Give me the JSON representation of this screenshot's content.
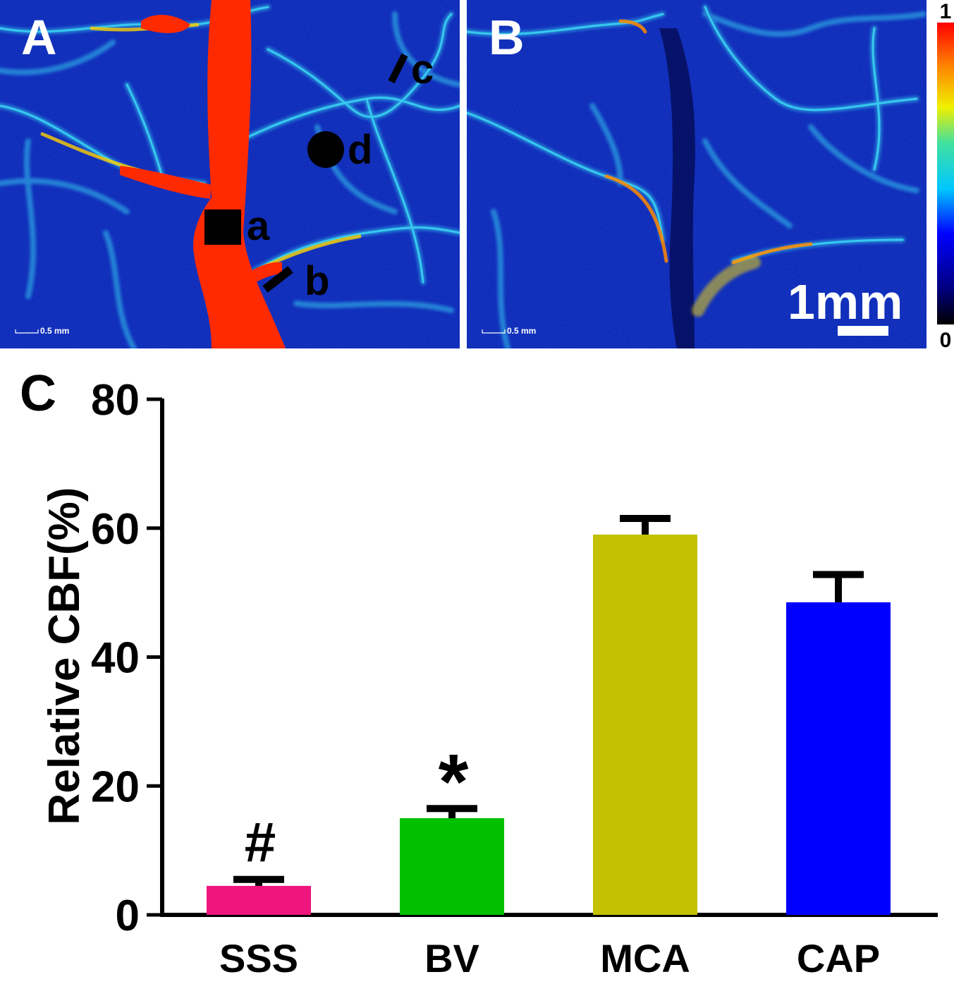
{
  "panels": {
    "a": {
      "label": "A",
      "scale_text": "0.5 mm",
      "markers": [
        {
          "shape": "square",
          "label": "a"
        },
        {
          "shape": "bar",
          "label": "b"
        },
        {
          "shape": "bar",
          "label": "c"
        },
        {
          "shape": "circle",
          "label": "d"
        }
      ]
    },
    "b": {
      "label": "B",
      "scale_text": "0.5 mm",
      "scale_bar_label": "1mm"
    },
    "colorbar": {
      "max_label": "1",
      "min_label": "0"
    }
  },
  "colors": {
    "laser_background": "#0a1fb4",
    "vessel_cyan": "#36c8ee",
    "vessel_red": "#ff2a00",
    "bar_sss": "#f0157d",
    "bar_bv": "#00c000",
    "bar_mca": "#c2c000",
    "bar_cap": "#0000ff"
  },
  "chart_data": {
    "type": "bar",
    "panel_label": "C",
    "categories": [
      "SSS",
      "BV",
      "MCA",
      "CAP"
    ],
    "values": [
      4.5,
      15,
      59,
      48.5
    ],
    "errors": [
      1,
      1.5,
      2.5,
      4.3
    ],
    "annotations": [
      "#",
      "*",
      "",
      ""
    ],
    "ylabel": "Relative CBF(%)",
    "xlabel": "",
    "ylim": [
      0,
      80
    ],
    "yticks": [
      0,
      20,
      40,
      60,
      80
    ],
    "grid": false
  }
}
